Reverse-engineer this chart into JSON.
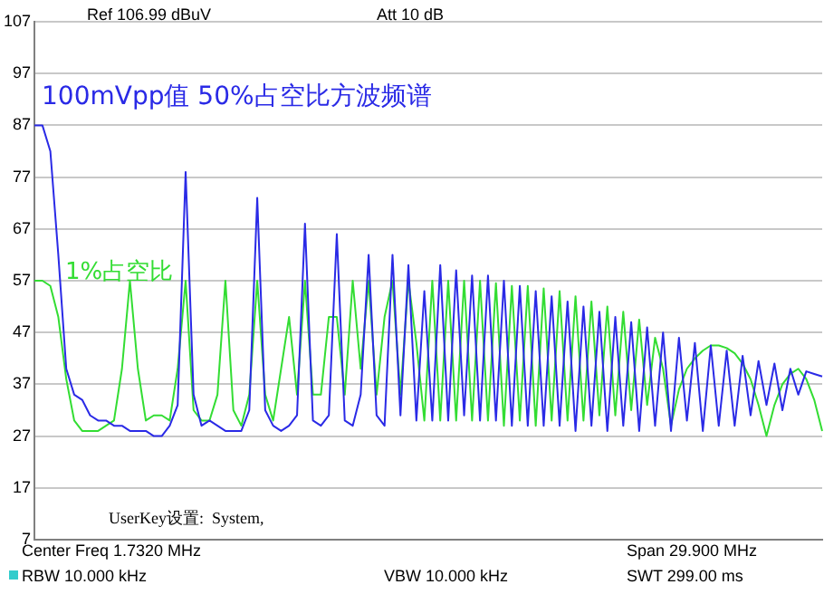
{
  "chart_data": {
    "type": "line",
    "categories": [
      null,
      null,
      null,
      null,
      null,
      null,
      null,
      null,
      null,
      null,
      null,
      null,
      null,
      null,
      null,
      null,
      null,
      null,
      null,
      null,
      null,
      null,
      null,
      null,
      null,
      null,
      null,
      null,
      null,
      null,
      null,
      null,
      null,
      null,
      null,
      null,
      null,
      null,
      null,
      null,
      null,
      null,
      null,
      null,
      null,
      null,
      null,
      null,
      null,
      null,
      null,
      null,
      null,
      null,
      null,
      null,
      null,
      null,
      null,
      null,
      null,
      null,
      null,
      null,
      null,
      null,
      null,
      null,
      null,
      null,
      null,
      null,
      null,
      null,
      null,
      null,
      null,
      null,
      null,
      null,
      null,
      null,
      null,
      null,
      null,
      null,
      null,
      null,
      null,
      null,
      null,
      null,
      null,
      null,
      null,
      null,
      null,
      null,
      null,
      null
    ],
    "ylim": [
      7,
      107
    ],
    "yticks": [
      7,
      17,
      27,
      37,
      47,
      57,
      67,
      77,
      87,
      97,
      107
    ],
    "tick_labels": "y",
    "grid": "y",
    "legend": false,
    "marker": "none",
    "series": [
      {
        "name": "100mVpp值 50%占空比方波频谱",
        "color": "#2a2ae6",
        "values": [
          87,
          87,
          82,
          62,
          40,
          35,
          34,
          31,
          30,
          30,
          29,
          29,
          28,
          28,
          28,
          27,
          27,
          29,
          33,
          78,
          35,
          29,
          30,
          29,
          28,
          28,
          28,
          32,
          73,
          32,
          29,
          28,
          29,
          31,
          68,
          30,
          29,
          31,
          66,
          30,
          29,
          35,
          62,
          31,
          29,
          62,
          31,
          60,
          30,
          55,
          30,
          60,
          30,
          59,
          31,
          58,
          30,
          58,
          30,
          57,
          29,
          56,
          29,
          55,
          29,
          54,
          29,
          53,
          28,
          52,
          29,
          51,
          28,
          50,
          29,
          49,
          28,
          48,
          29,
          47,
          28,
          46,
          30,
          45,
          28,
          44.5,
          29,
          43.5,
          29,
          42.5,
          31,
          41.5,
          33,
          41,
          32,
          40,
          35,
          39.5,
          39,
          38.5
        ]
      },
      {
        "name": "1%占空比",
        "color": "#33dd33",
        "values": [
          57,
          57,
          56,
          50,
          38,
          30,
          28,
          28,
          28,
          29,
          30,
          40,
          57,
          40,
          30,
          31,
          31,
          30,
          40,
          57,
          32,
          30,
          30,
          35,
          57,
          32,
          29,
          35,
          57,
          35,
          30,
          40,
          50,
          35,
          57,
          35,
          35,
          50,
          50,
          35,
          57,
          40,
          57,
          35,
          50,
          57,
          35,
          57,
          45,
          30,
          57,
          30,
          57,
          30,
          57,
          30,
          57,
          30,
          56.5,
          29,
          56,
          30,
          56,
          29,
          55.5,
          30,
          55,
          30,
          54,
          30,
          53,
          31,
          52,
          31,
          51,
          32,
          49.5,
          33,
          46,
          40,
          29,
          36,
          40,
          42,
          43.5,
          44.5,
          44.5,
          44,
          43,
          41,
          38,
          33,
          27,
          33,
          37,
          39,
          40,
          38,
          34,
          28
        ]
      }
    ],
    "annotations": [
      "Ref 106.99 dBuV",
      "Att 10 dB",
      "UserKey设置:  System,",
      "Center Freq 1.7320 MHz",
      "Span 29.900 MHz",
      "RBW 10.000 kHz",
      "VBW 10.000 kHz",
      "SWT 299.00 ms"
    ]
  }
}
